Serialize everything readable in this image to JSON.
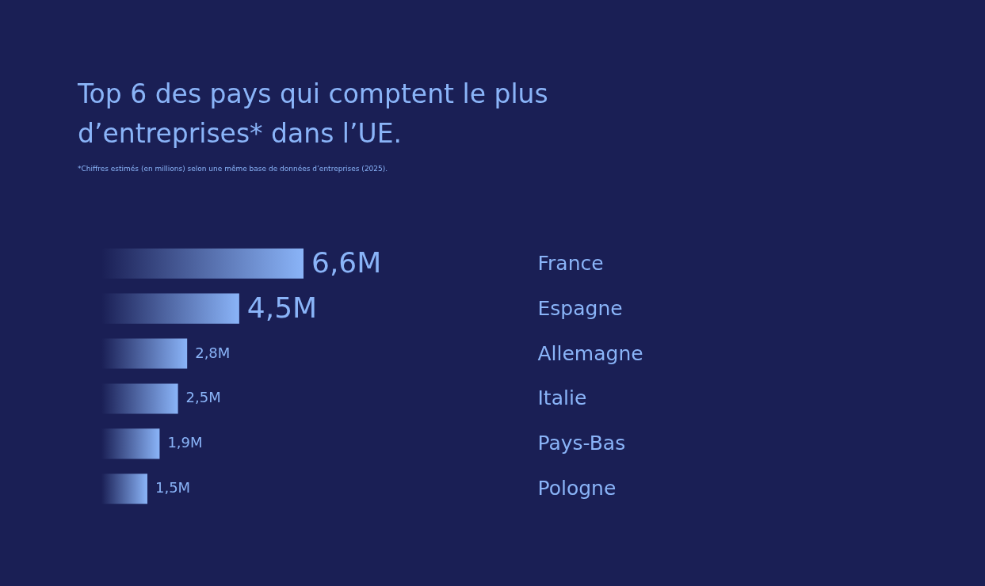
{
  "chart_data": {
    "type": "bar",
    "orientation": "horizontal",
    "title": "Top 6 des pays qui comptent le plus d’entreprises* dans l’UE.",
    "subtitle": "*Chiffres estimés (en millions) selon une même base de données d’entreprises (2025).",
    "categories": [
      "France",
      "Espagne",
      "Allemagne",
      "Italie",
      "Pays-Bas",
      "Pologne"
    ],
    "values": [
      6.6,
      4.5,
      2.8,
      2.5,
      1.9,
      1.5
    ],
    "value_labels": [
      "6,6M",
      "4,5M",
      "2,8M",
      "2,5M",
      "1,9M",
      "1,5M"
    ],
    "color": "#8ab4f8"
  }
}
